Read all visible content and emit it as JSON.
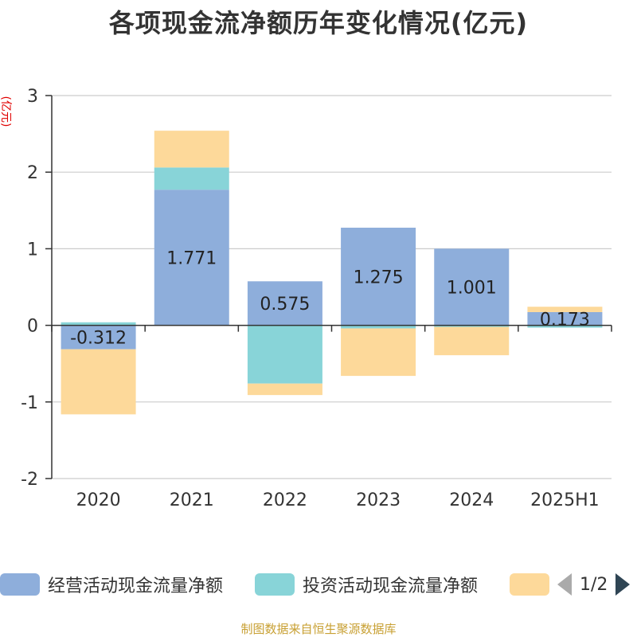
{
  "chart_data": {
    "type": "bar",
    "stacked": true,
    "title": "各项现金流净额历年变化情况(亿元)",
    "ylabel": "(亿元)",
    "ylim": [
      -2,
      3
    ],
    "yticks": [
      -2,
      -1,
      0,
      1,
      2,
      3
    ],
    "grid": true,
    "categories": [
      "2020",
      "2021",
      "2022",
      "2023",
      "2024",
      "2025H1"
    ],
    "series": [
      {
        "name": "经营活动现金流量净额",
        "color": "#8eaedb",
        "values": [
          -0.312,
          1.771,
          0.575,
          1.275,
          1.001,
          0.173
        ],
        "labels": [
          "-0.312",
          "1.771",
          "0.575",
          "1.275",
          "1.001",
          "0.173"
        ]
      },
      {
        "name": "投资活动现金流量净额",
        "color": "#88d4d8",
        "values": [
          0.04,
          0.29,
          -0.76,
          -0.04,
          -0.02,
          -0.03
        ]
      },
      {
        "name": "",
        "color": "#fdd99a",
        "values": [
          -0.85,
          0.48,
          -0.15,
          -0.62,
          -0.37,
          0.07
        ]
      }
    ],
    "legend_position": "bottom"
  },
  "legend": {
    "page_text": "1/2"
  },
  "source": "制图数据来自恒生聚源数据库"
}
